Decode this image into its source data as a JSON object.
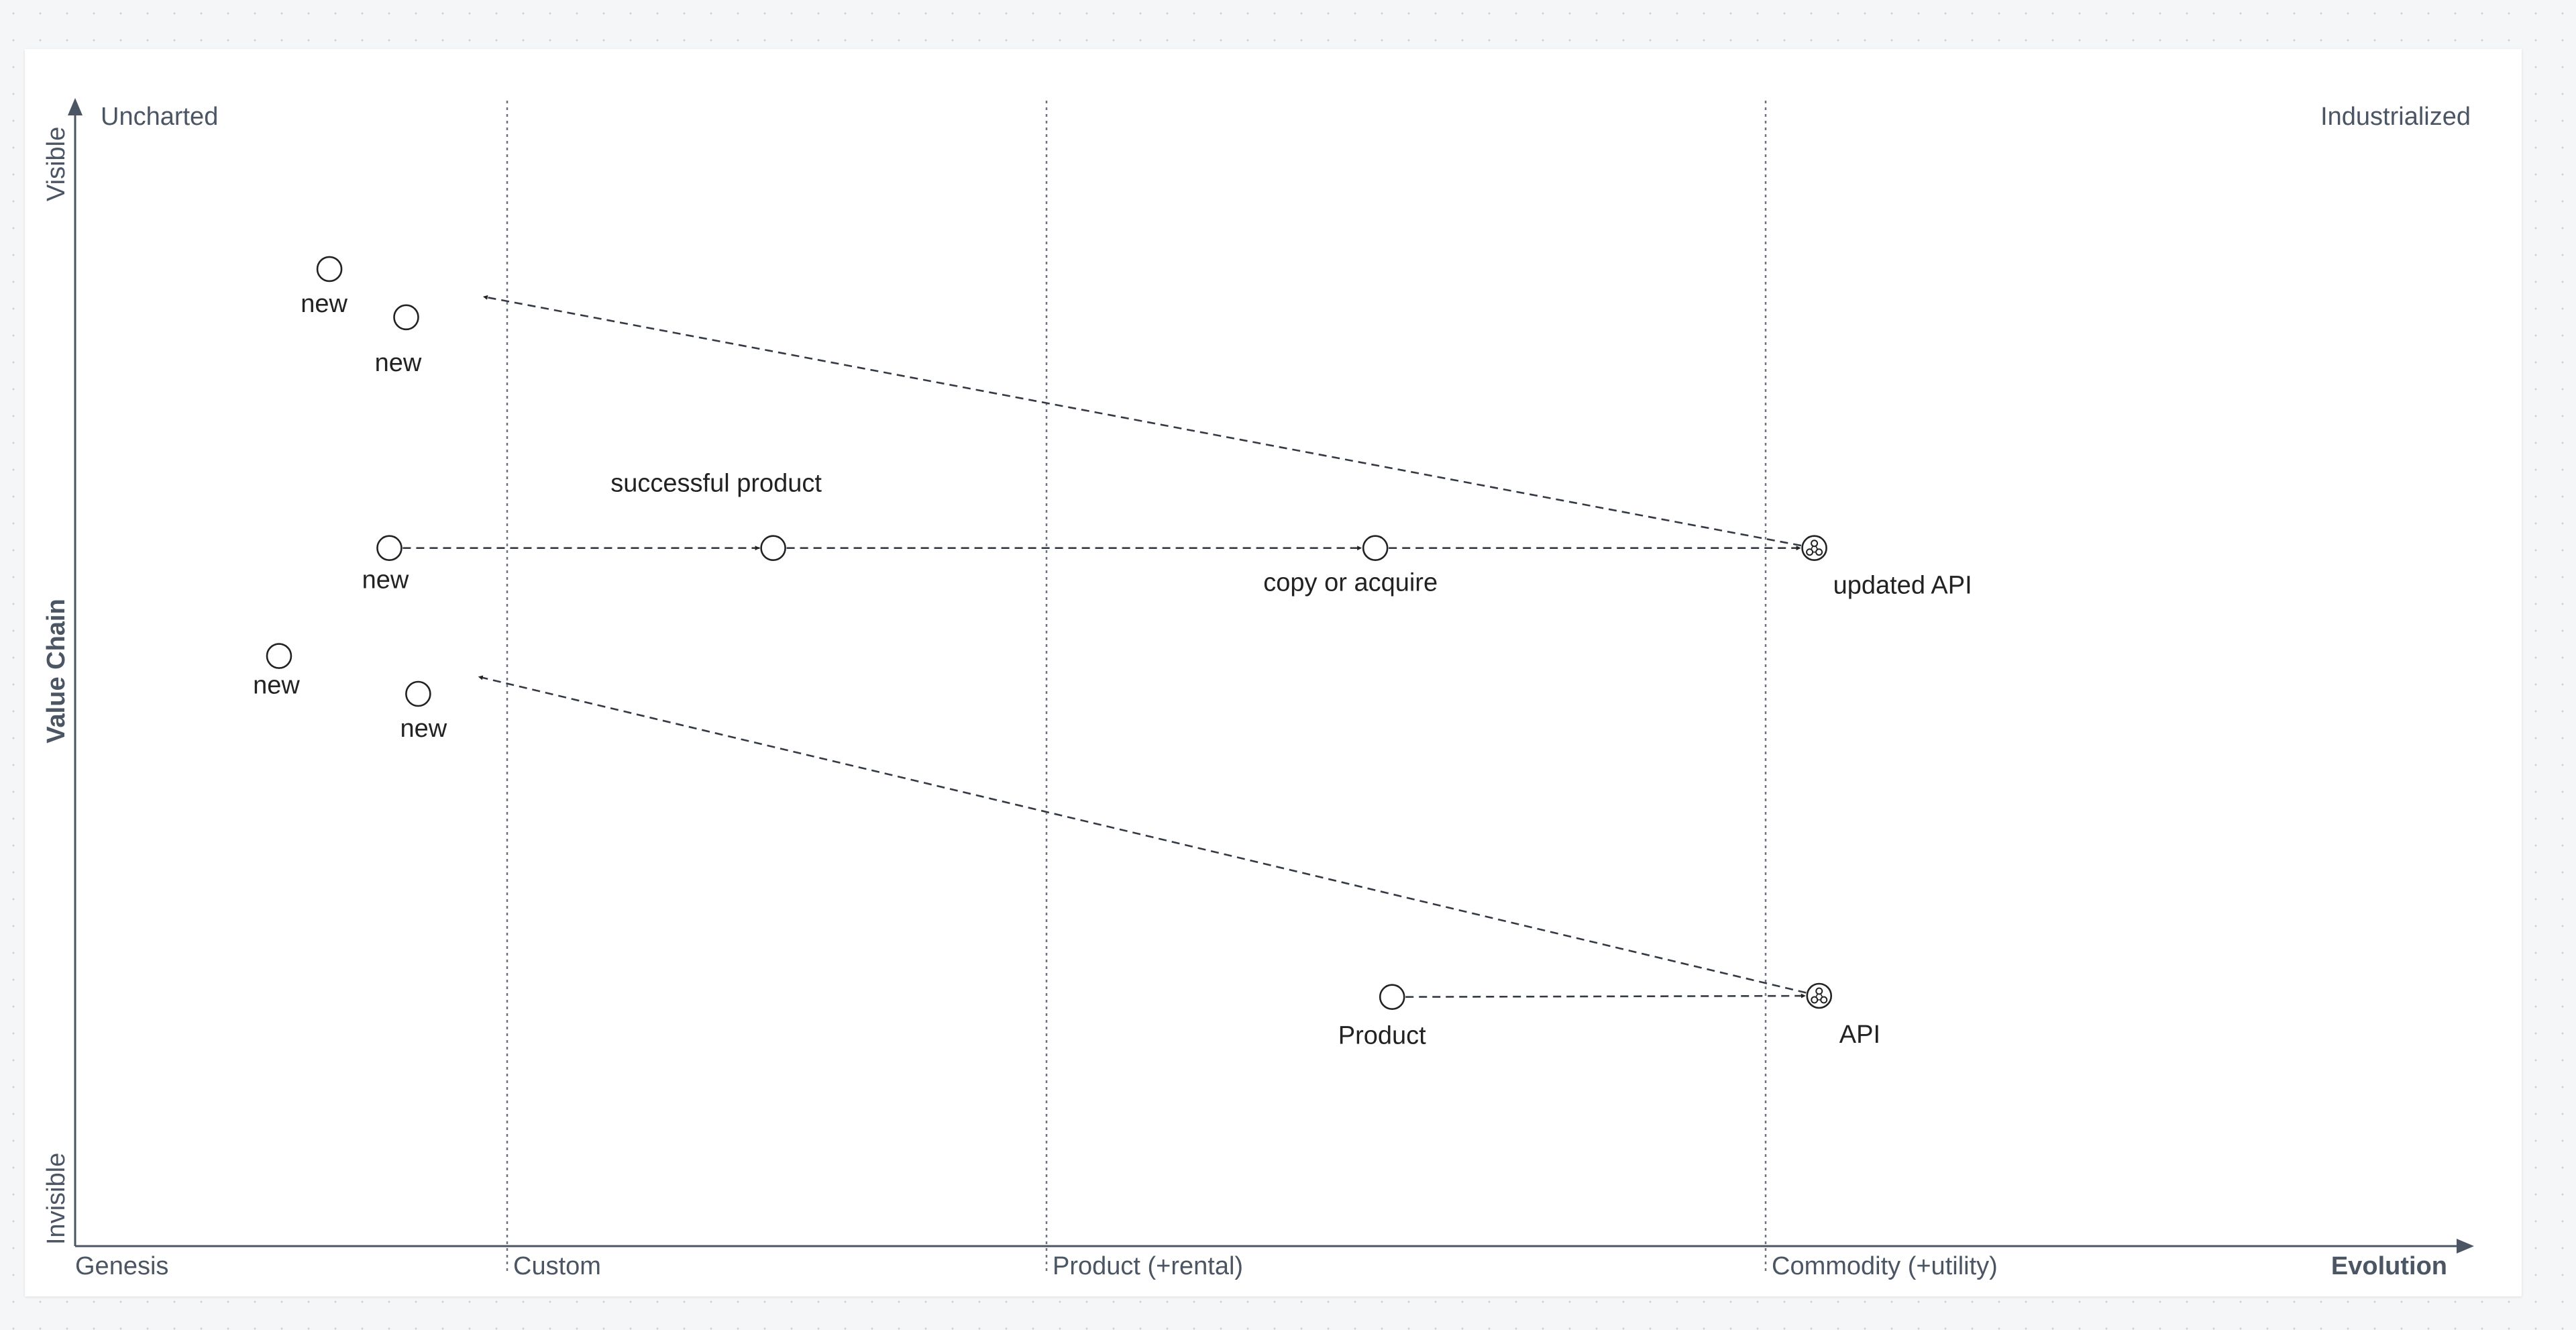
{
  "axes": {
    "y_title": "Value Chain",
    "y_top": "Visible",
    "y_bottom": "Invisible",
    "x_title": "Evolution",
    "corner_left": "Uncharted",
    "corner_right": "Industrialized",
    "stages": [
      "Genesis",
      "Custom",
      "Product (+rental)",
      "Commodity (+utility)"
    ]
  },
  "components": [
    {
      "id": "n1",
      "label": "new",
      "evolution": 0.106,
      "visibility": 0.149,
      "type": "component"
    },
    {
      "id": "n2",
      "label": "new",
      "evolution": 0.138,
      "visibility": 0.191,
      "type": "component"
    },
    {
      "id": "n3",
      "label": "new",
      "evolution": 0.131,
      "visibility": 0.392,
      "type": "component"
    },
    {
      "id": "n4",
      "label": "new",
      "evolution": 0.085,
      "visibility": 0.486,
      "type": "component"
    },
    {
      "id": "n5",
      "label": "new",
      "evolution": 0.143,
      "visibility": 0.519,
      "type": "component"
    },
    {
      "id": "sp",
      "label": "successful product",
      "evolution": 0.291,
      "visibility": 0.392,
      "type": "component"
    },
    {
      "id": "ca",
      "label": "copy or acquire",
      "evolution": 0.542,
      "visibility": 0.392,
      "type": "component"
    },
    {
      "id": "pr",
      "label": "Product",
      "evolution": 0.549,
      "visibility": 0.783,
      "type": "component"
    },
    {
      "id": "ua",
      "label": "updated API",
      "evolution": 0.725,
      "visibility": 0.392,
      "type": "market"
    },
    {
      "id": "api",
      "label": "API",
      "evolution": 0.727,
      "visibility": 0.782,
      "type": "market"
    }
  ],
  "links": [
    {
      "from": "n3",
      "to": "sp",
      "arrow": true
    },
    {
      "from": "sp",
      "to": "ca",
      "arrow": true
    },
    {
      "from": "ca",
      "to": "ua",
      "arrow": true
    },
    {
      "from": "pr",
      "to": "api",
      "arrow": true
    },
    {
      "from": "ua",
      "to_point": [
        0.17,
        0.173
      ],
      "arrow": true
    },
    {
      "from": "api",
      "to_point": [
        0.168,
        0.504
      ],
      "arrow": true
    }
  ]
}
